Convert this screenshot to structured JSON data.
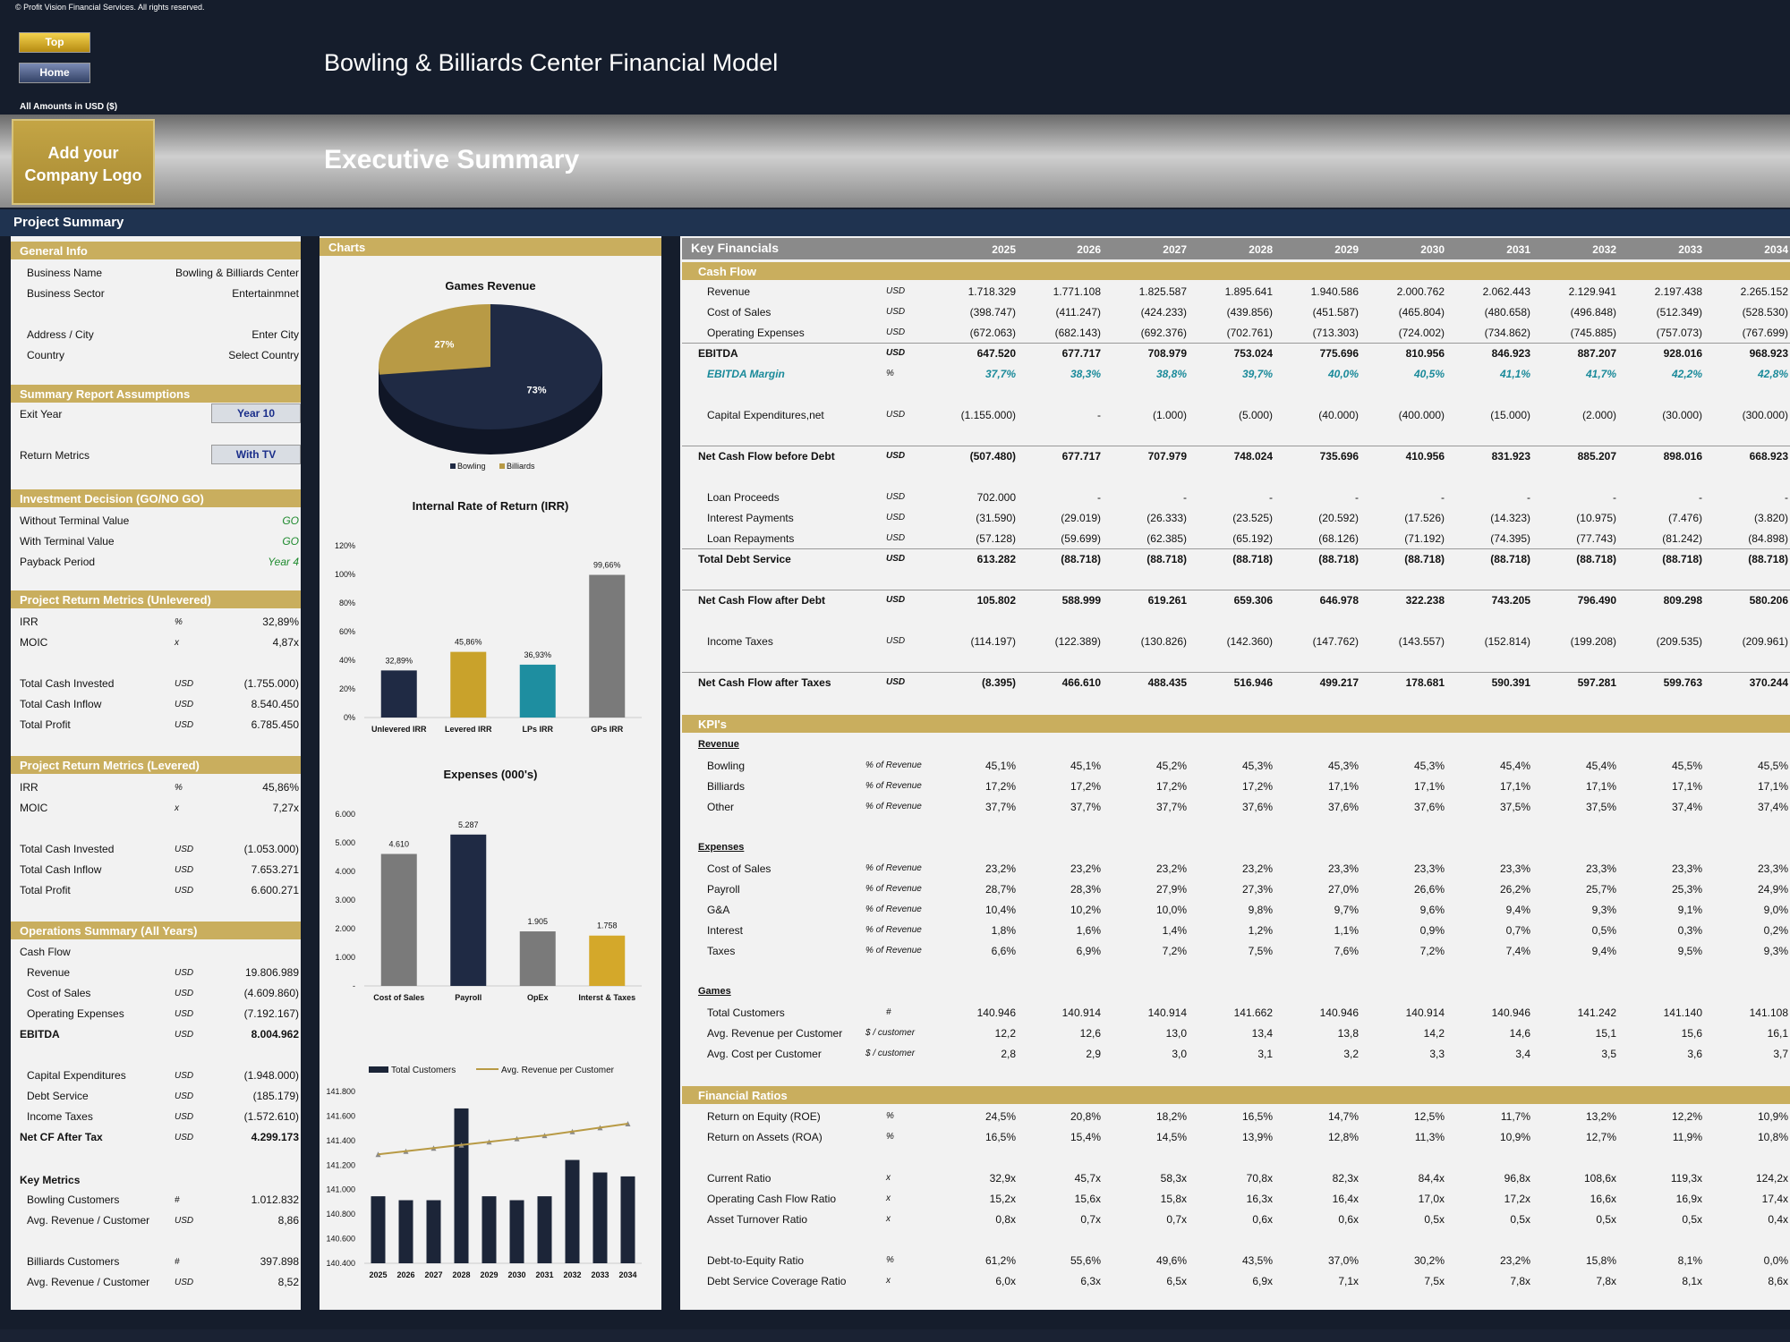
{
  "header": {
    "copyright": "© Profit Vision Financial Services. All rights reserved.",
    "top_btn": "Top",
    "home_btn": "Home",
    "title": "Bowling & Billiards Center Financial Model",
    "amounts_label": "All Amounts in USD ($)",
    "logo_text": "Add your Company Logo",
    "section_title": "Executive Summary",
    "project_summary": "Project Summary"
  },
  "general": {
    "title": "General Info",
    "rows": [
      [
        "Business Name",
        "Bowling & Billiards Center"
      ],
      [
        "Business Sector",
        "Entertainmnet"
      ],
      [
        "Address / City",
        "Enter City"
      ],
      [
        "Country",
        "Select Country"
      ]
    ]
  },
  "assumptions": {
    "title": "Summary Report Assumptions",
    "exit_label": "Exit Year",
    "exit_value": "Year 10",
    "return_label": "Return Metrics",
    "return_value": "With TV"
  },
  "decision": {
    "title": "Investment Decision (GO/NO GO)",
    "rows": [
      [
        "Without Terminal Value",
        "GO"
      ],
      [
        "With Terminal Value",
        "GO"
      ],
      [
        "Payback Period",
        "Year 4"
      ]
    ]
  },
  "unlevered": {
    "title": "Project Return Metrics (Unlevered)",
    "rows": [
      [
        "IRR",
        "%",
        "32,89%"
      ],
      [
        "MOIC",
        "x",
        "4,87x"
      ],
      [
        "Total Cash Invested",
        "USD",
        "(1.755.000)"
      ],
      [
        "Total Cash Inflow",
        "USD",
        "8.540.450"
      ],
      [
        "Total Profit",
        "USD",
        "6.785.450"
      ]
    ]
  },
  "levered": {
    "title": "Project Return Metrics (Levered)",
    "rows": [
      [
        "IRR",
        "%",
        "45,86%"
      ],
      [
        "MOIC",
        "x",
        "7,27x"
      ],
      [
        "Total Cash Invested",
        "USD",
        "(1.053.000)"
      ],
      [
        "Total Cash Inflow",
        "USD",
        "7.653.271"
      ],
      [
        "Total Profit",
        "USD",
        "6.600.271"
      ]
    ]
  },
  "ops": {
    "title": "Operations Summary (All Years)",
    "cashflow": "Cash Flow",
    "rows": [
      [
        "Revenue",
        "USD",
        "19.806.989"
      ],
      [
        "Cost of Sales",
        "USD",
        "(4.609.860)"
      ],
      [
        "Operating Expenses",
        "USD",
        "(7.192.167)"
      ],
      [
        "EBITDA",
        "USD",
        "8.004.962"
      ],
      [
        "Capital Expenditures",
        "USD",
        "(1.948.000)"
      ],
      [
        "Debt Service",
        "USD",
        "(185.179)"
      ],
      [
        "Income Taxes",
        "USD",
        "(1.572.610)"
      ],
      [
        "Net CF After Tax",
        "USD",
        "4.299.173"
      ]
    ],
    "key_metrics": "Key Metrics",
    "metrics": [
      [
        "Bowling Customers",
        "#",
        "1.012.832"
      ],
      [
        "Avg. Revenue / Customer",
        "USD",
        "8,86"
      ],
      [
        "Billiards Customers",
        "#",
        "397.898"
      ],
      [
        "Avg. Revenue / Customer",
        "USD",
        "8,52"
      ]
    ]
  },
  "charts": {
    "title": "Charts"
  },
  "chart_data": [
    {
      "type": "pie",
      "title": "Games Revenue",
      "categories": [
        "Bowling",
        "Billiards"
      ],
      "values": [
        73,
        27
      ],
      "labels": [
        "73%",
        "27%"
      ],
      "colors": [
        "#1f2a44",
        "#b89a45"
      ]
    },
    {
      "type": "bar",
      "title": "Internal Rate of Return (IRR)",
      "categories": [
        "Unlevered IRR",
        "Levered IRR",
        "LPs IRR",
        "GPs IRR"
      ],
      "values": [
        32.89,
        45.86,
        36.93,
        99.66
      ],
      "labels": [
        "32,89%",
        "45,86%",
        "36,93%",
        "99,66%"
      ],
      "yticks": [
        "0%",
        "20%",
        "40%",
        "60%",
        "80%",
        "100%",
        "120%"
      ],
      "ylim": [
        0,
        120
      ]
    },
    {
      "type": "bar",
      "title": "Expenses (000's)",
      "categories": [
        "Cost of Sales",
        "Payroll",
        "OpEx",
        "Interst & Taxes"
      ],
      "values": [
        4610,
        5287,
        1905,
        1758
      ],
      "labels": [
        "4.610",
        "5.287",
        "1.905",
        "1.758"
      ],
      "yticks": [
        "-",
        "1.000",
        "2.000",
        "3.000",
        "4.000",
        "5.000",
        "6.000"
      ],
      "ylim": [
        0,
        6000
      ]
    },
    {
      "type": "bar",
      "legend": [
        "Total Customers",
        "Avg. Revenue per Customer"
      ],
      "categories": [
        "2025",
        "2026",
        "2027",
        "2028",
        "2029",
        "2030",
        "2031",
        "2032",
        "2033",
        "2034"
      ],
      "values": [
        140946,
        140914,
        140914,
        141662,
        140946,
        140914,
        140946,
        141242,
        141140,
        141108
      ],
      "line": [
        12.2,
        12.6,
        13.0,
        13.4,
        13.8,
        14.2,
        14.6,
        15.1,
        15.6,
        16.1
      ],
      "yticks": [
        "140.400",
        "140.600",
        "140.800",
        "141.000",
        "141.200",
        "141.400",
        "141.600",
        "141.800"
      ],
      "ylim": [
        140400,
        141800
      ]
    }
  ],
  "kf": {
    "title": "Key Financials",
    "years": [
      "2025",
      "2026",
      "2027",
      "2028",
      "2029",
      "2030",
      "2031",
      "2032",
      "2033",
      "2034"
    ],
    "cashflow_title": "Cash Flow",
    "kpi_title": "KPI's",
    "ratios_title": "Financial Ratios",
    "rows": [
      {
        "y": 315,
        "label": "Revenue",
        "unit": "USD",
        "v": [
          "1.718.329",
          "1.771.108",
          "1.825.587",
          "1.895.641",
          "1.940.586",
          "2.000.762",
          "2.062.443",
          "2.129.941",
          "2.197.438",
          "2.265.152"
        ]
      },
      {
        "y": 338,
        "label": "Cost of Sales",
        "unit": "USD",
        "v": [
          "(398.747)",
          "(411.247)",
          "(424.233)",
          "(439.856)",
          "(451.587)",
          "(465.804)",
          "(480.658)",
          "(496.848)",
          "(512.349)",
          "(528.530)"
        ]
      },
      {
        "y": 361,
        "label": "Operating Expenses",
        "unit": "USD",
        "v": [
          "(672.063)",
          "(682.143)",
          "(692.376)",
          "(702.761)",
          "(713.303)",
          "(724.002)",
          "(734.862)",
          "(745.885)",
          "(757.073)",
          "(767.699)"
        ]
      },
      {
        "y": 384,
        "label": "EBITDA",
        "unit": "USD",
        "bold": true,
        "v": [
          "647.520",
          "677.717",
          "708.979",
          "753.024",
          "775.696",
          "810.956",
          "846.923",
          "887.207",
          "928.016",
          "968.923"
        ]
      },
      {
        "y": 407,
        "label": "EBITDA Margin",
        "unit": "%",
        "teal": true,
        "v": [
          "37,7%",
          "38,3%",
          "38,8%",
          "39,7%",
          "40,0%",
          "40,5%",
          "41,1%",
          "41,7%",
          "42,2%",
          "42,8%"
        ]
      },
      {
        "y": 453,
        "label": "Capital Expenditures,net",
        "unit": "USD",
        "v": [
          "(1.155.000)",
          "-",
          "(1.000)",
          "(5.000)",
          "(40.000)",
          "(400.000)",
          "(15.000)",
          "(2.000)",
          "(30.000)",
          "(300.000)"
        ]
      },
      {
        "y": 499,
        "label": "Net Cash Flow before Debt",
        "unit": "USD",
        "bold": true,
        "v": [
          "(507.480)",
          "677.717",
          "707.979",
          "748.024",
          "735.696",
          "410.956",
          "831.923",
          "885.207",
          "898.016",
          "668.923"
        ]
      },
      {
        "y": 545,
        "label": "Loan Proceeds",
        "unit": "USD",
        "v": [
          "702.000",
          "-",
          "-",
          "-",
          "-",
          "-",
          "-",
          "-",
          "-",
          "-"
        ]
      },
      {
        "y": 568,
        "label": "Interest Payments",
        "unit": "USD",
        "v": [
          "(31.590)",
          "(29.019)",
          "(26.333)",
          "(23.525)",
          "(20.592)",
          "(17.526)",
          "(14.323)",
          "(10.975)",
          "(7.476)",
          "(3.820)"
        ]
      },
      {
        "y": 591,
        "label": "Loan Repayments",
        "unit": "USD",
        "v": [
          "(57.128)",
          "(59.699)",
          "(62.385)",
          "(65.192)",
          "(68.126)",
          "(71.192)",
          "(74.395)",
          "(77.743)",
          "(81.242)",
          "(84.898)"
        ]
      },
      {
        "y": 614,
        "label": "Total Debt Service",
        "unit": "USD",
        "bold": true,
        "v": [
          "613.282",
          "(88.718)",
          "(88.718)",
          "(88.718)",
          "(88.718)",
          "(88.718)",
          "(88.718)",
          "(88.718)",
          "(88.718)",
          "(88.718)"
        ]
      },
      {
        "y": 660,
        "label": "Net Cash Flow after Debt",
        "unit": "USD",
        "bold": true,
        "v": [
          "105.802",
          "588.999",
          "619.261",
          "659.306",
          "646.978",
          "322.238",
          "743.205",
          "796.490",
          "809.298",
          "580.206"
        ]
      },
      {
        "y": 706,
        "label": "Income Taxes",
        "unit": "USD",
        "v": [
          "(114.197)",
          "(122.389)",
          "(130.826)",
          "(142.360)",
          "(147.762)",
          "(143.557)",
          "(152.814)",
          "(199.208)",
          "(209.535)",
          "(209.961)"
        ]
      },
      {
        "y": 752,
        "label": "Net Cash Flow after Taxes",
        "unit": "USD",
        "bold": true,
        "v": [
          "(8.395)",
          "466.610",
          "488.435",
          "516.946",
          "499.217",
          "178.681",
          "590.391",
          "597.281",
          "599.763",
          "370.244"
        ]
      },
      {
        "y": 822,
        "label": "Revenue",
        "unit": "",
        "header": true,
        "v": []
      },
      {
        "y": 845,
        "label": "Bowling",
        "unit": "% of Revenue",
        "v": [
          "45,1%",
          "45,1%",
          "45,2%",
          "45,3%",
          "45,3%",
          "45,3%",
          "45,4%",
          "45,4%",
          "45,5%",
          "45,5%"
        ]
      },
      {
        "y": 868,
        "label": "Billiards",
        "unit": "% of Revenue",
        "v": [
          "17,2%",
          "17,2%",
          "17,2%",
          "17,2%",
          "17,1%",
          "17,1%",
          "17,1%",
          "17,1%",
          "17,1%",
          "17,1%"
        ]
      },
      {
        "y": 891,
        "label": "Other",
        "unit": "% of Revenue",
        "v": [
          "37,7%",
          "37,7%",
          "37,7%",
          "37,6%",
          "37,6%",
          "37,6%",
          "37,5%",
          "37,5%",
          "37,4%",
          "37,4%"
        ]
      },
      {
        "y": 937,
        "label": "Expenses",
        "unit": "",
        "header": true,
        "v": []
      },
      {
        "y": 960,
        "label": "Cost of Sales",
        "unit": "% of Revenue",
        "v": [
          "23,2%",
          "23,2%",
          "23,2%",
          "23,2%",
          "23,3%",
          "23,3%",
          "23,3%",
          "23,3%",
          "23,3%",
          "23,3%"
        ]
      },
      {
        "y": 983,
        "label": "Payroll",
        "unit": "% of Revenue",
        "v": [
          "28,7%",
          "28,3%",
          "27,9%",
          "27,3%",
          "27,0%",
          "26,6%",
          "26,2%",
          "25,7%",
          "25,3%",
          "24,9%"
        ]
      },
      {
        "y": 1006,
        "label": "G&A",
        "unit": "% of Revenue",
        "v": [
          "10,4%",
          "10,2%",
          "10,0%",
          "9,8%",
          "9,7%",
          "9,6%",
          "9,4%",
          "9,3%",
          "9,1%",
          "9,0%"
        ]
      },
      {
        "y": 1029,
        "label": "Interest",
        "unit": "% of Revenue",
        "v": [
          "1,8%",
          "1,6%",
          "1,4%",
          "1,2%",
          "1,1%",
          "0,9%",
          "0,7%",
          "0,5%",
          "0,3%",
          "0,2%"
        ]
      },
      {
        "y": 1052,
        "label": "Taxes",
        "unit": "% of Revenue",
        "v": [
          "6,6%",
          "6,9%",
          "7,2%",
          "7,5%",
          "7,6%",
          "7,2%",
          "7,4%",
          "9,4%",
          "9,5%",
          "9,3%"
        ]
      },
      {
        "y": 1098,
        "label": "Games",
        "unit": "",
        "header": true,
        "v": []
      },
      {
        "y": 1121,
        "label": "Total Customers",
        "unit": "#",
        "v": [
          "140.946",
          "140.914",
          "140.914",
          "141.662",
          "140.946",
          "140.914",
          "140.946",
          "141.242",
          "141.140",
          "141.108"
        ]
      },
      {
        "y": 1144,
        "label": "Avg. Revenue per Customer",
        "unit": "$ / customer",
        "v": [
          "12,2",
          "12,6",
          "13,0",
          "13,4",
          "13,8",
          "14,2",
          "14,6",
          "15,1",
          "15,6",
          "16,1"
        ]
      },
      {
        "y": 1167,
        "label": "Avg. Cost per Customer",
        "unit": "$ / customer",
        "v": [
          "2,8",
          "2,9",
          "3,0",
          "3,1",
          "3,2",
          "3,3",
          "3,4",
          "3,5",
          "3,6",
          "3,7"
        ]
      },
      {
        "y": 1237,
        "label": "Return on Equity (ROE)",
        "unit": "%",
        "v": [
          "24,5%",
          "20,8%",
          "18,2%",
          "16,5%",
          "14,7%",
          "12,5%",
          "11,7%",
          "13,2%",
          "12,2%",
          "10,9%"
        ]
      },
      {
        "y": 1260,
        "label": "Return on Assets (ROA)",
        "unit": "%",
        "v": [
          "16,5%",
          "15,4%",
          "14,5%",
          "13,9%",
          "12,8%",
          "11,3%",
          "10,9%",
          "12,7%",
          "11,9%",
          "10,8%"
        ]
      },
      {
        "y": 1306,
        "label": "Current Ratio",
        "unit": "x",
        "v": [
          "32,9x",
          "45,7x",
          "58,3x",
          "70,8x",
          "82,3x",
          "84,4x",
          "96,8x",
          "108,6x",
          "119,3x",
          "124,2x"
        ]
      },
      {
        "y": 1329,
        "label": "Operating Cash Flow Ratio",
        "unit": "x",
        "v": [
          "15,2x",
          "15,6x",
          "15,8x",
          "16,3x",
          "16,4x",
          "17,0x",
          "17,2x",
          "16,6x",
          "16,9x",
          "17,4x"
        ]
      },
      {
        "y": 1352,
        "label": "Asset Turnover Ratio",
        "unit": "x",
        "v": [
          "0,8x",
          "0,7x",
          "0,7x",
          "0,6x",
          "0,6x",
          "0,5x",
          "0,5x",
          "0,5x",
          "0,5x",
          "0,4x"
        ]
      },
      {
        "y": 1398,
        "label": "Debt-to-Equity Ratio",
        "unit": "%",
        "v": [
          "61,2%",
          "55,6%",
          "49,6%",
          "43,5%",
          "37,0%",
          "30,2%",
          "23,2%",
          "15,8%",
          "8,1%",
          "0,0%"
        ]
      },
      {
        "y": 1421,
        "label": "Debt Service Coverage Ratio",
        "unit": "x",
        "v": [
          "6,0x",
          "6,3x",
          "6,5x",
          "6,9x",
          "7,1x",
          "7,5x",
          "7,8x",
          "7,8x",
          "8,1x",
          "8,6x"
        ]
      }
    ]
  }
}
